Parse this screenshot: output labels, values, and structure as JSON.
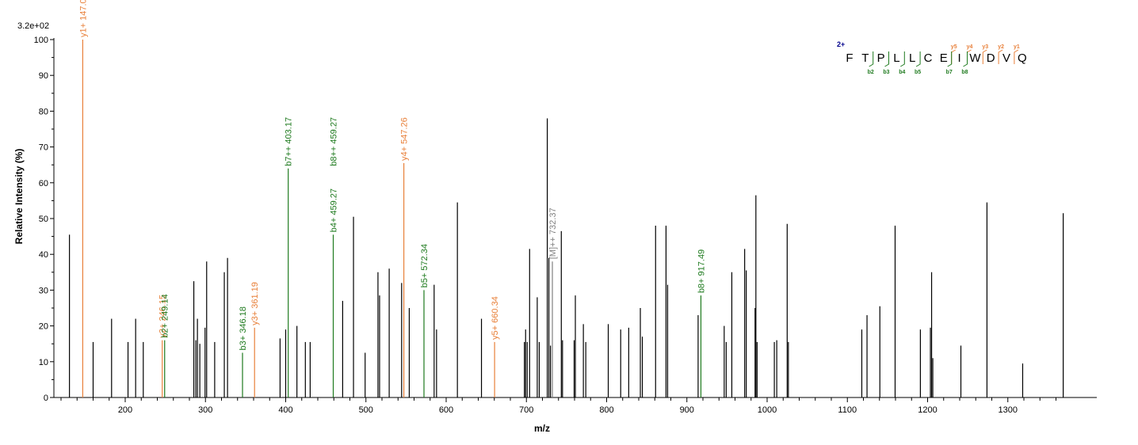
{
  "chart_data": {
    "type": "bar",
    "title": "",
    "max_intensity_label": "3.2e+02",
    "xlabel": "m/z",
    "ylabel": "Relative   Intensity (%)",
    "xlim": [
      72,
      1384
    ],
    "ylim": [
      0,
      100
    ],
    "x_ticks": [
      200,
      300,
      400,
      500,
      600,
      700,
      800,
      900,
      1000,
      1100,
      1200,
      1300
    ],
    "y_ticks": [
      0,
      10,
      20,
      30,
      40,
      50,
      60,
      70,
      80,
      90,
      100
    ],
    "grid": false,
    "colors": {
      "y_ion": "#E8803A",
      "b_ion": "#1E7A1E",
      "precursor": "#808080",
      "unassigned": "#000000",
      "charge": "#00008B"
    },
    "peaks": [
      {
        "mz": 130.5,
        "intensity": 45.5,
        "ion": "none"
      },
      {
        "mz": 147.08,
        "intensity": 100,
        "ion": "y",
        "label": "y1+ 147.08"
      },
      {
        "mz": 160.0,
        "intensity": 15.5,
        "ion": "none"
      },
      {
        "mz": 183.0,
        "intensity": 22.0,
        "ion": "none"
      },
      {
        "mz": 203.5,
        "intensity": 15.5,
        "ion": "none"
      },
      {
        "mz": 213.0,
        "intensity": 22.0,
        "ion": "none"
      },
      {
        "mz": 222.5,
        "intensity": 15.5,
        "ion": "none"
      },
      {
        "mz": 246.15,
        "intensity": 16.0,
        "ion": "y",
        "label": "y2+ 246.15"
      },
      {
        "mz": 249.14,
        "intensity": 16.0,
        "ion": "b",
        "label": "b2+ 249.14"
      },
      {
        "mz": 285.5,
        "intensity": 32.5,
        "ion": "none"
      },
      {
        "mz": 288.0,
        "intensity": 16.0,
        "ion": "none"
      },
      {
        "mz": 290.0,
        "intensity": 22.0,
        "ion": "none"
      },
      {
        "mz": 293.0,
        "intensity": 15.0,
        "ion": "none"
      },
      {
        "mz": 299.5,
        "intensity": 19.5,
        "ion": "none"
      },
      {
        "mz": 301.5,
        "intensity": 38.0,
        "ion": "none"
      },
      {
        "mz": 311.5,
        "intensity": 15.5,
        "ion": "none"
      },
      {
        "mz": 323.5,
        "intensity": 35.0,
        "ion": "none"
      },
      {
        "mz": 327.5,
        "intensity": 39.0,
        "ion": "none"
      },
      {
        "mz": 346.18,
        "intensity": 12.5,
        "ion": "b",
        "label": "b3+ 346.18"
      },
      {
        "mz": 361.19,
        "intensity": 19.5,
        "ion": "y",
        "label": "y3+ 361.19"
      },
      {
        "mz": 393.0,
        "intensity": 16.5,
        "ion": "none"
      },
      {
        "mz": 400.0,
        "intensity": 19.0,
        "ion": "none"
      },
      {
        "mz": 403.17,
        "intensity": 64.0,
        "ion": "b",
        "label": "b7++ 403.17"
      },
      {
        "mz": 414.0,
        "intensity": 20.0,
        "ion": "none"
      },
      {
        "mz": 424.5,
        "intensity": 15.5,
        "ion": "none"
      },
      {
        "mz": 430.5,
        "intensity": 15.5,
        "ion": "none"
      },
      {
        "mz": 459.27,
        "intensity": 45.5,
        "ion": "b",
        "label": "b4+ 459.27"
      },
      {
        "mz": 471.0,
        "intensity": 27.0,
        "ion": "none"
      },
      {
        "mz": 484.5,
        "intensity": 50.5,
        "ion": "none"
      },
      {
        "mz": 499.0,
        "intensity": 12.5,
        "ion": "none"
      },
      {
        "mz": 515.0,
        "intensity": 35.0,
        "ion": "none"
      },
      {
        "mz": 517.0,
        "intensity": 28.5,
        "ion": "none"
      },
      {
        "mz": 529.0,
        "intensity": 36.0,
        "ion": "none"
      },
      {
        "mz": 544.5,
        "intensity": 32.0,
        "ion": "none"
      },
      {
        "mz": 547.26,
        "intensity": 65.5,
        "ion": "y",
        "label": "y4+ 547.26"
      },
      {
        "mz": 554.0,
        "intensity": 25.0,
        "ion": "none"
      },
      {
        "mz": 572.34,
        "intensity": 30.0,
        "ion": "b",
        "label": "b5+ 572.34"
      },
      {
        "mz": 585.0,
        "intensity": 31.5,
        "ion": "none"
      },
      {
        "mz": 588.0,
        "intensity": 19.0,
        "ion": "none"
      },
      {
        "mz": 614.0,
        "intensity": 54.5,
        "ion": "none"
      },
      {
        "mz": 644.0,
        "intensity": 22.0,
        "ion": "none"
      },
      {
        "mz": 660.34,
        "intensity": 15.5,
        "ion": "y",
        "label": "y5+ 660.34"
      },
      {
        "mz": 697.5,
        "intensity": 15.5,
        "ion": "none"
      },
      {
        "mz": 699.0,
        "intensity": 19.0,
        "ion": "none"
      },
      {
        "mz": 701.0,
        "intensity": 15.5,
        "ion": "none"
      },
      {
        "mz": 704.0,
        "intensity": 41.5,
        "ion": "none"
      },
      {
        "mz": 713.5,
        "intensity": 28.0,
        "ion": "none"
      },
      {
        "mz": 716.0,
        "intensity": 15.5,
        "ion": "none"
      },
      {
        "mz": 726.0,
        "intensity": 78.0,
        "ion": "none"
      },
      {
        "mz": 728.0,
        "intensity": 39.0,
        "ion": "none"
      },
      {
        "mz": 730.0,
        "intensity": 14.5,
        "ion": "none"
      },
      {
        "mz": 732.37,
        "intensity": 38.0,
        "ion": "precursor",
        "label": "[M]++ 732.37"
      },
      {
        "mz": 743.5,
        "intensity": 46.5,
        "ion": "none"
      },
      {
        "mz": 745.0,
        "intensity": 16.0,
        "ion": "none"
      },
      {
        "mz": 759.5,
        "intensity": 16.0,
        "ion": "none"
      },
      {
        "mz": 761.0,
        "intensity": 28.5,
        "ion": "none"
      },
      {
        "mz": 771.0,
        "intensity": 20.5,
        "ion": "none"
      },
      {
        "mz": 774.0,
        "intensity": 15.5,
        "ion": "none"
      },
      {
        "mz": 802.0,
        "intensity": 20.5,
        "ion": "none"
      },
      {
        "mz": 817.5,
        "intensity": 19.0,
        "ion": "none"
      },
      {
        "mz": 827.5,
        "intensity": 19.5,
        "ion": "none"
      },
      {
        "mz": 842.0,
        "intensity": 25.0,
        "ion": "none"
      },
      {
        "mz": 844.5,
        "intensity": 17.0,
        "ion": "none"
      },
      {
        "mz": 861.0,
        "intensity": 48.0,
        "ion": "none"
      },
      {
        "mz": 874.0,
        "intensity": 48.0,
        "ion": "none"
      },
      {
        "mz": 876.0,
        "intensity": 31.5,
        "ion": "none"
      },
      {
        "mz": 914.0,
        "intensity": 23.0,
        "ion": "none"
      },
      {
        "mz": 917.49,
        "intensity": 28.5,
        "ion": "b",
        "label": "b8+ 917.49"
      },
      {
        "mz": 946.5,
        "intensity": 20.0,
        "ion": "none"
      },
      {
        "mz": 949.0,
        "intensity": 15.5,
        "ion": "none"
      },
      {
        "mz": 956.0,
        "intensity": 35.0,
        "ion": "none"
      },
      {
        "mz": 972.0,
        "intensity": 41.5,
        "ion": "none"
      },
      {
        "mz": 974.0,
        "intensity": 35.5,
        "ion": "none"
      },
      {
        "mz": 985.0,
        "intensity": 25.0,
        "ion": "none"
      },
      {
        "mz": 986.0,
        "intensity": 56.5,
        "ion": "none"
      },
      {
        "mz": 987.5,
        "intensity": 15.5,
        "ion": "none"
      },
      {
        "mz": 1009.0,
        "intensity": 15.5,
        "ion": "none"
      },
      {
        "mz": 1012.0,
        "intensity": 16.0,
        "ion": "none"
      },
      {
        "mz": 1025.0,
        "intensity": 48.5,
        "ion": "none"
      },
      {
        "mz": 1026.5,
        "intensity": 15.5,
        "ion": "none"
      },
      {
        "mz": 1118.0,
        "intensity": 19.0,
        "ion": "none"
      },
      {
        "mz": 1124.5,
        "intensity": 23.0,
        "ion": "none"
      },
      {
        "mz": 1140.5,
        "intensity": 25.5,
        "ion": "none"
      },
      {
        "mz": 1159.5,
        "intensity": 48.0,
        "ion": "none"
      },
      {
        "mz": 1191.0,
        "intensity": 19.0,
        "ion": "none"
      },
      {
        "mz": 1203.5,
        "intensity": 19.5,
        "ion": "none"
      },
      {
        "mz": 1205.0,
        "intensity": 35.0,
        "ion": "none"
      },
      {
        "mz": 1206.5,
        "intensity": 11.0,
        "ion": "none"
      },
      {
        "mz": 1241.5,
        "intensity": 14.5,
        "ion": "none"
      },
      {
        "mz": 1274.0,
        "intensity": 54.5,
        "ion": "none"
      },
      {
        "mz": 1318.5,
        "intensity": 9.5,
        "ion": "none"
      },
      {
        "mz": 1369.0,
        "intensity": 51.5,
        "ion": "none"
      }
    ],
    "extra_labels": [
      {
        "mz": 459.27,
        "intensity": 64.0,
        "ion": "b",
        "label": "b8++ 459.27"
      }
    ]
  },
  "sequence": {
    "charge": "2+",
    "residues": [
      "F",
      "T",
      "P",
      "L",
      "L",
      "C",
      "E",
      "I",
      "W",
      "D",
      "V",
      "Q"
    ],
    "y_ions": [
      {
        "label": "y5",
        "after_index": 6
      },
      {
        "label": "y4",
        "after_index": 7
      },
      {
        "label": "y3",
        "after_index": 8
      },
      {
        "label": "y2",
        "after_index": 9
      },
      {
        "label": "y1",
        "after_index": 10
      }
    ],
    "b_ions": [
      {
        "label": "b2",
        "after_index": 1
      },
      {
        "label": "b3",
        "after_index": 2
      },
      {
        "label": "b4",
        "after_index": 3
      },
      {
        "label": "b5",
        "after_index": 4
      },
      {
        "label": "b7",
        "after_index": 6
      },
      {
        "label": "b8",
        "after_index": 7
      }
    ]
  }
}
